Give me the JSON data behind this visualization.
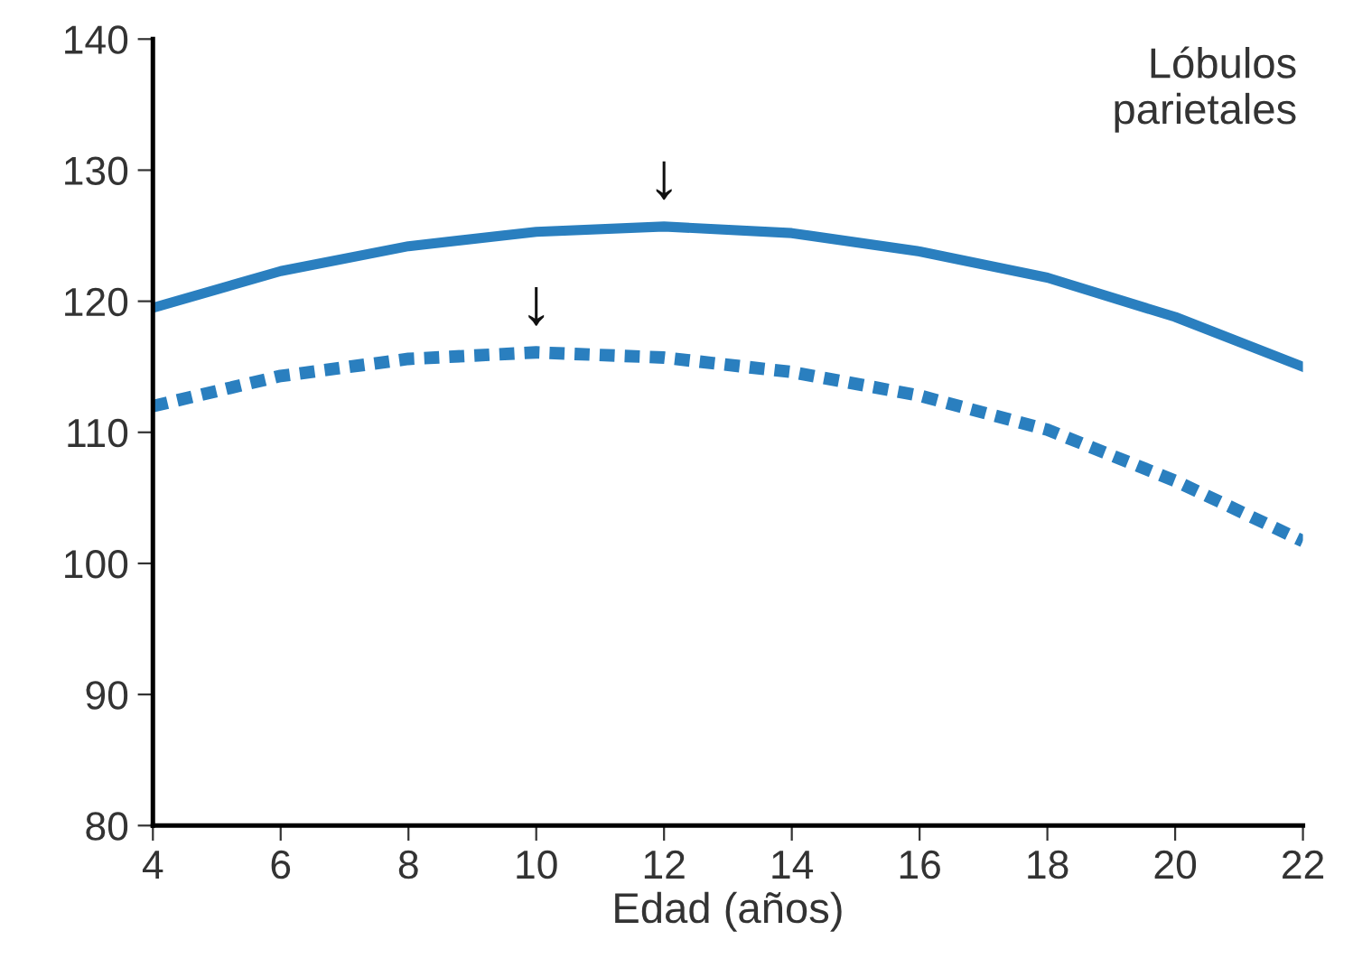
{
  "chart_data": {
    "type": "line",
    "title": "Lóbulos\nparietales",
    "xlabel": "Edad (años)",
    "x": [
      4,
      6,
      8,
      10,
      12,
      14,
      16,
      18,
      20,
      22
    ],
    "series": [
      {
        "color": "#2a7fbf",
        "line_style": "solid",
        "values": [
          119.5,
          122.3,
          124.2,
          125.3,
          125.7,
          125.2,
          123.8,
          121.8,
          118.8,
          115
        ]
      },
      {
        "color": "#2a7fbf",
        "line_style": "dotted",
        "values": [
          112,
          114.3,
          115.6,
          116.1,
          115.7,
          114.6,
          112.8,
          110.2,
          106.3,
          101.7
        ]
      }
    ],
    "annotations": [
      {
        "text": "↓",
        "x": 12,
        "y": 125.7
      },
      {
        "text": "↓",
        "x": 10,
        "y": 116.1
      }
    ],
    "xlim": [
      4,
      22
    ],
    "xticks": [
      4,
      6,
      8,
      10,
      12,
      14,
      16,
      18,
      20,
      22
    ],
    "ylim": [
      80,
      140
    ],
    "yticks": [
      80,
      90,
      100,
      110,
      120,
      130,
      140
    ],
    "grid": false,
    "legend": false,
    "marker": "none"
  }
}
